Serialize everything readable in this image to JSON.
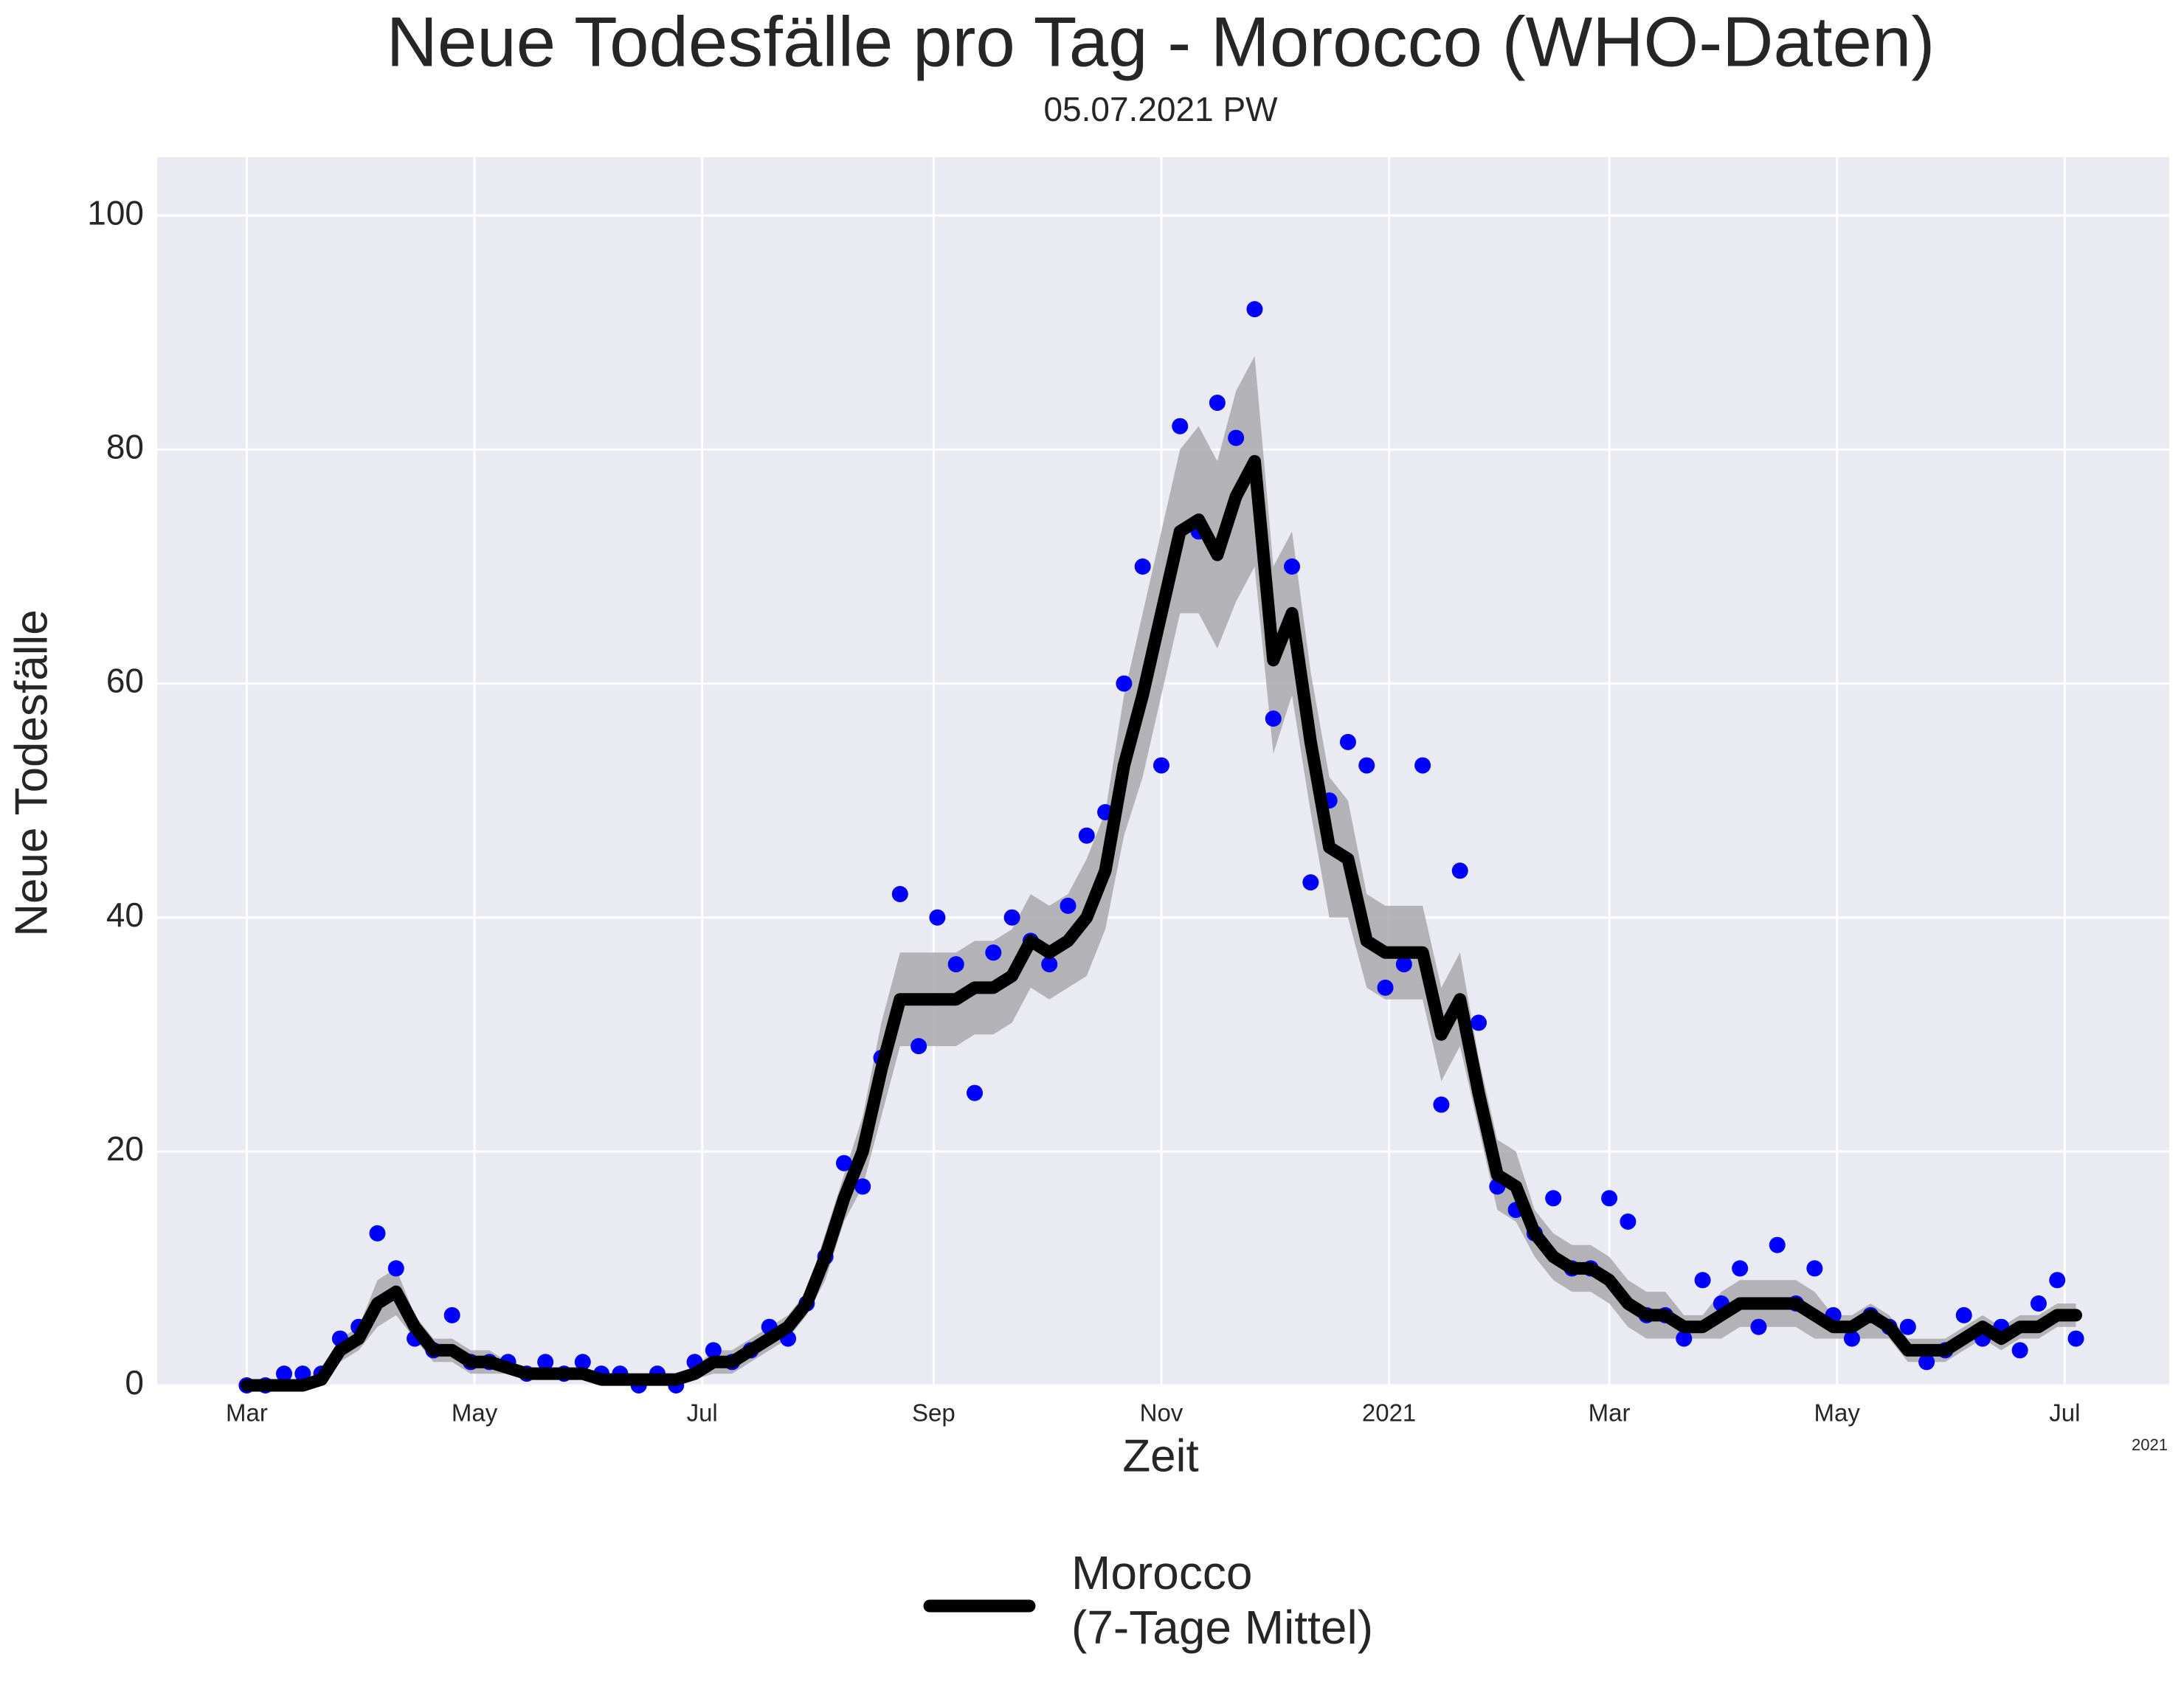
{
  "chart_data": {
    "type": "scatter",
    "title": "Neue Todesfälle pro Tag - Morocco (WHO-Daten)",
    "subtitle": "05.07.2021 PW",
    "x_label": "Zeit",
    "y_label": "Neue Todesfälle",
    "x_offset_label": "2021",
    "xlim": [
      -24,
      515
    ],
    "ylim": [
      0,
      105
    ],
    "xticks": [
      {
        "value": 0,
        "label": "Mar"
      },
      {
        "value": 61,
        "label": "May"
      },
      {
        "value": 122,
        "label": "Jul"
      },
      {
        "value": 184,
        "label": "Sep"
      },
      {
        "value": 245,
        "label": "Nov"
      },
      {
        "value": 306,
        "label": "2021"
      },
      {
        "value": 365,
        "label": "Mar"
      },
      {
        "value": 426,
        "label": "May"
      },
      {
        "value": 487,
        "label": "Jul"
      }
    ],
    "yticks": [
      0,
      20,
      40,
      60,
      80,
      100
    ],
    "grid": true,
    "x": [
      0,
      5,
      10,
      15,
      20,
      25,
      30,
      35,
      40,
      45,
      50,
      55,
      60,
      65,
      70,
      75,
      80,
      85,
      90,
      95,
      100,
      105,
      110,
      115,
      120,
      125,
      130,
      135,
      140,
      145,
      150,
      155,
      160,
      165,
      170,
      175,
      180,
      185,
      190,
      195,
      200,
      205,
      210,
      215,
      220,
      225,
      230,
      235,
      240,
      245,
      250,
      255,
      260,
      265,
      270,
      275,
      280,
      285,
      290,
      295,
      300,
      305,
      310,
      315,
      320,
      325,
      330,
      335,
      340,
      345,
      350,
      355,
      360,
      365,
      370,
      375,
      380,
      385,
      390,
      395,
      400,
      405,
      410,
      415,
      420,
      425,
      430,
      435,
      440,
      445,
      450,
      455,
      460,
      465,
      470,
      475,
      480,
      485,
      490
    ],
    "series": [
      {
        "color": "#0000ff",
        "values": [
          0,
          0,
          1,
          1,
          1,
          4,
          5,
          13,
          10,
          4,
          3,
          6,
          2,
          2,
          2,
          1,
          2,
          1,
          2,
          1,
          1,
          0,
          1,
          0,
          2,
          3,
          2,
          3,
          5,
          4,
          7,
          11,
          19,
          17,
          28,
          42,
          29,
          40,
          36,
          25,
          37,
          40,
          38,
          36,
          41,
          47,
          49,
          60,
          70,
          53,
          82,
          73,
          84,
          81,
          92,
          57,
          70,
          43,
          50,
          55,
          53,
          34,
          36,
          53,
          24,
          44,
          31,
          17,
          15,
          13,
          16,
          10,
          10,
          16,
          14,
          6,
          6,
          4,
          9,
          7,
          10,
          5,
          12,
          7,
          10,
          6,
          4,
          6,
          5,
          5,
          2,
          3,
          6,
          4,
          5,
          3,
          7,
          9,
          4
        ]
      },
      {
        "name": [
          "Morocco",
          "(7-Tage Mittel)"
        ],
        "color": "#000000",
        "values": [
          0,
          0,
          0,
          0,
          0.5,
          3,
          4,
          7,
          8,
          5,
          3,
          3,
          2,
          2,
          1.5,
          1,
          1,
          1,
          1,
          0.5,
          0.5,
          0.5,
          0.5,
          0.5,
          1,
          2,
          2,
          3,
          4,
          5,
          7,
          11,
          16,
          20,
          27,
          33,
          33,
          33,
          33,
          34,
          34,
          35,
          38,
          37,
          38,
          40,
          44,
          53,
          59,
          66,
          73,
          74,
          71,
          76,
          79,
          62,
          66,
          55,
          46,
          45,
          38,
          37,
          37,
          37,
          30,
          33,
          25,
          18,
          17,
          13,
          11,
          10,
          10,
          9,
          7,
          6,
          6,
          5,
          5,
          6,
          7,
          7,
          7,
          7,
          6,
          5,
          5,
          6,
          5,
          3,
          3,
          3,
          4,
          5,
          4,
          5,
          5,
          6,
          6
        ]
      }
    ],
    "band": {
      "color": "#a9a9ad",
      "lower": [
        0,
        0,
        0,
        0,
        0,
        2,
        3,
        5,
        6,
        4,
        2,
        2,
        1,
        1,
        1,
        0.5,
        0.5,
        0.5,
        0.5,
        0,
        0,
        0,
        0,
        0,
        0.5,
        1,
        1,
        2,
        3,
        4,
        6,
        9,
        14,
        17,
        23,
        29,
        29,
        29,
        29,
        30,
        30,
        31,
        34,
        33,
        34,
        35,
        39,
        47,
        52,
        59,
        66,
        66,
        63,
        67,
        70,
        54,
        59,
        49,
        40,
        40,
        34,
        33,
        33,
        33,
        26,
        29,
        22,
        15,
        14,
        11,
        9,
        8,
        8,
        7,
        5,
        4,
        4,
        4,
        4,
        4,
        5,
        5,
        5,
        5,
        4,
        4,
        4,
        4,
        4,
        2,
        2,
        2,
        3,
        4,
        3,
        4,
        4,
        5,
        5
      ],
      "upper": [
        0,
        0,
        0,
        0,
        1,
        4,
        5,
        9,
        10,
        6,
        4,
        4,
        3,
        3,
        2,
        1.5,
        1.5,
        1.5,
        1.5,
        1,
        1,
        1,
        1,
        1,
        1.5,
        3,
        3,
        4,
        5,
        6,
        8,
        13,
        18,
        23,
        31,
        37,
        37,
        37,
        37,
        38,
        38,
        39,
        42,
        41,
        42,
        45,
        49,
        59,
        66,
        73,
        80,
        82,
        79,
        85,
        88,
        70,
        73,
        61,
        52,
        50,
        42,
        41,
        41,
        41,
        34,
        37,
        28,
        21,
        20,
        15,
        13,
        12,
        12,
        11,
        9,
        8,
        8,
        6,
        6,
        8,
        9,
        9,
        9,
        9,
        8,
        6,
        6,
        7,
        6,
        4,
        4,
        4,
        5,
        6,
        5,
        6,
        6,
        7,
        7
      ]
    }
  }
}
